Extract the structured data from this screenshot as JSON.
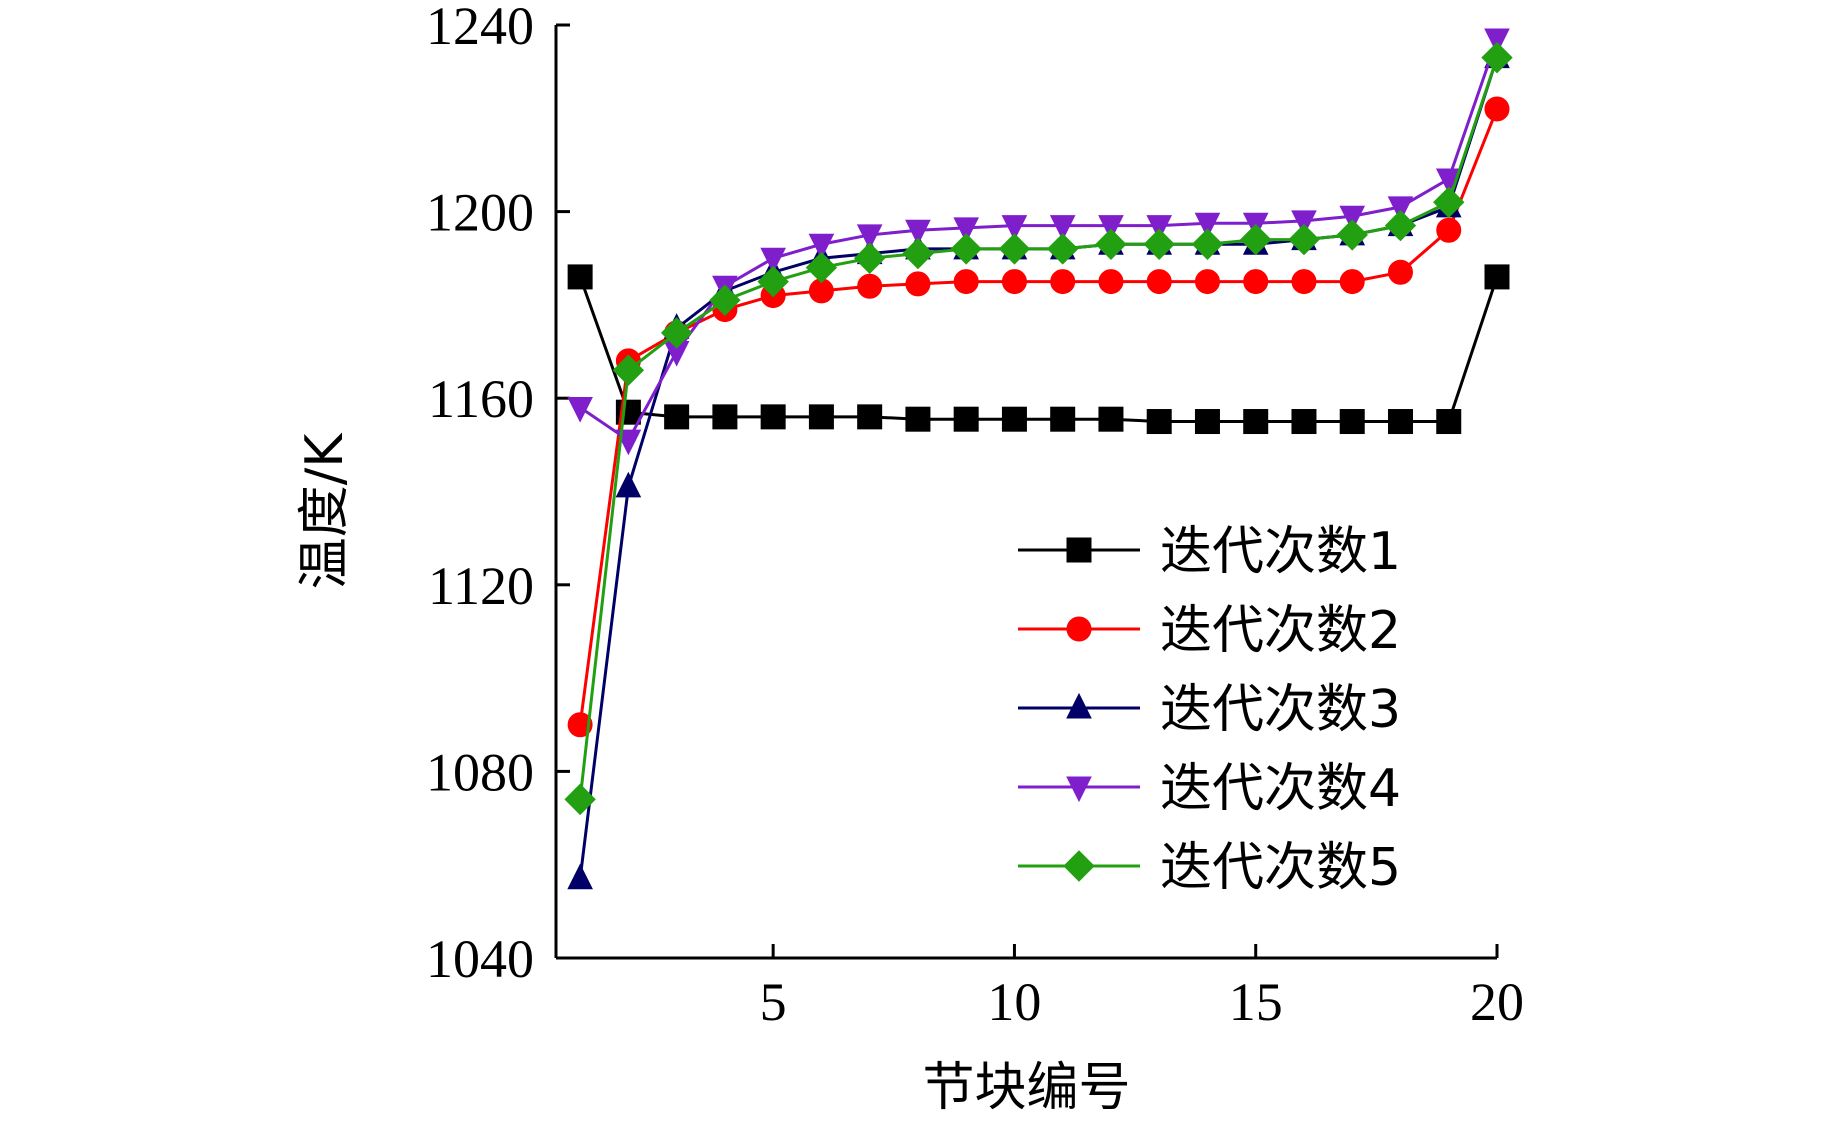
{
  "chart_data": {
    "type": "line",
    "xlabel": "节块编号",
    "ylabel": "温度/K",
    "xlim": [
      0.5,
      20
    ],
    "ylim": [
      1040,
      1240
    ],
    "xticks": [
      "5",
      "10",
      "15",
      "20"
    ],
    "yticks": [
      "1040",
      "1080",
      "1120",
      "1160",
      "1200",
      "1240"
    ],
    "grid": false,
    "legend_position": "center-right",
    "x": [
      1,
      2,
      3,
      4,
      5,
      6,
      7,
      8,
      9,
      10,
      11,
      12,
      13,
      14,
      15,
      16,
      17,
      18,
      19,
      20
    ],
    "series": [
      {
        "name": "迭代次数1",
        "color": "#000000",
        "marker": "square",
        "values": [
          1186,
          1157,
          1156,
          1156,
          1156,
          1156,
          1156,
          1155.5,
          1155.5,
          1155.5,
          1155.5,
          1155.5,
          1155,
          1155,
          1155,
          1155,
          1155,
          1155,
          1155,
          1186
        ]
      },
      {
        "name": "迭代次数2",
        "color": "#ff0000",
        "marker": "circle",
        "values": [
          1090,
          1168,
          1174,
          1179,
          1182,
          1183,
          1184,
          1184.5,
          1185,
          1185,
          1185,
          1185,
          1185,
          1185,
          1185,
          1185,
          1185,
          1187,
          1196,
          1222
        ]
      },
      {
        "name": "迭代次数3",
        "color": "#000066",
        "marker": "triangle-up",
        "values": [
          1057,
          1141,
          1175,
          1183,
          1187,
          1190,
          1191,
          1192,
          1192,
          1192,
          1192,
          1193,
          1193,
          1193,
          1193,
          1194,
          1195,
          1197,
          1201,
          1233
        ]
      },
      {
        "name": "迭代次数4",
        "color": "#7f1fcc",
        "marker": "triangle-down",
        "values": [
          1158,
          1151,
          1170,
          1184,
          1190,
          1193,
          1195,
          1196,
          1196.5,
          1197,
          1197,
          1197,
          1197,
          1197.5,
          1197.5,
          1198,
          1199,
          1201,
          1207,
          1237
        ]
      },
      {
        "name": "迭代次数5",
        "color": "#22a012",
        "marker": "diamond",
        "values": [
          1074,
          1166,
          1174,
          1181,
          1185,
          1188,
          1190,
          1191,
          1192,
          1192,
          1192,
          1193,
          1193,
          1193,
          1194,
          1194,
          1195,
          1197,
          1202,
          1233
        ]
      }
    ]
  }
}
